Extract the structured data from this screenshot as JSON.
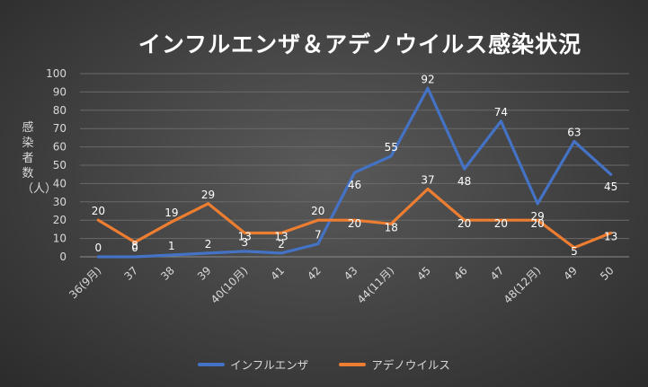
{
  "chart_data": {
    "type": "line",
    "title": "インフルエンザ＆アデノウイルス感染状況",
    "ylabel": "感染者数（人）",
    "xlabel": "",
    "ylim": [
      0,
      100
    ],
    "yticks": [
      0,
      10,
      20,
      30,
      40,
      50,
      60,
      70,
      80,
      90,
      100
    ],
    "grid": true,
    "legend_position": "bottom",
    "categories": [
      "36(9月)",
      "37",
      "38",
      "39",
      "40(10月)",
      "41",
      "42",
      "43",
      "44(11月)",
      "45",
      "46",
      "47",
      "48(12月)",
      "49",
      "50"
    ],
    "series": [
      {
        "name": "インフルエンザ",
        "color": "#4472C4",
        "values": [
          0,
          0,
          1,
          2,
          3,
          2,
          7,
          46,
          55,
          92,
          48,
          74,
          29,
          63,
          45
        ]
      },
      {
        "name": "アデノウイルス",
        "color": "#ED7D31",
        "values": [
          20,
          8,
          19,
          29,
          13,
          13,
          20,
          20,
          18,
          37,
          20,
          20,
          20,
          5,
          13
        ]
      }
    ]
  }
}
